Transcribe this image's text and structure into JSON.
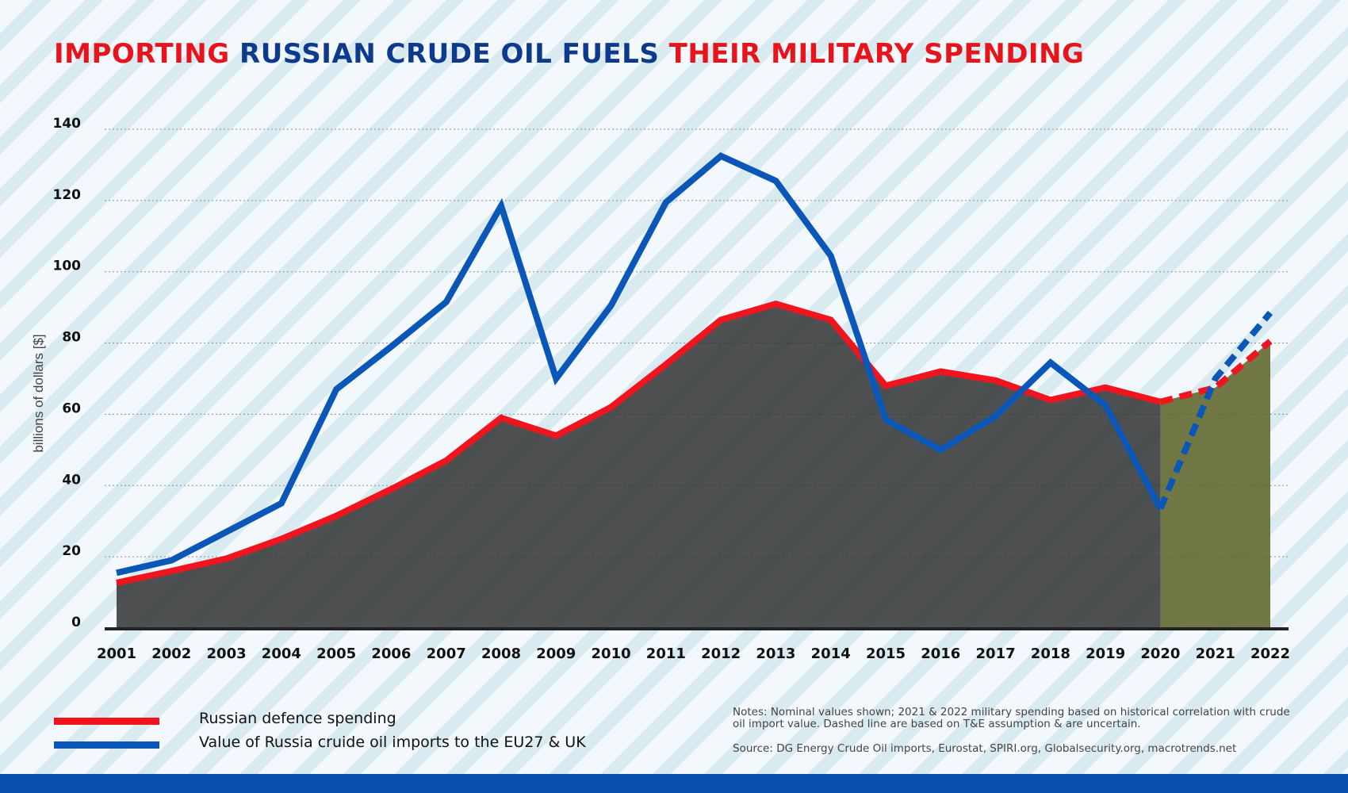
{
  "header": {
    "title_parts": [
      "IMPORTING ",
      "RUSSIAN CRUDE OIL FUELS ",
      "THEIR MILITARY SPENDING"
    ],
    "title_colors": [
      "#e8141c",
      "#0d3a8c",
      "#e8141c"
    ]
  },
  "colors": {
    "defence": "#f0141e",
    "oil": "#0b57b8",
    "footer": "#0b4fad",
    "photo_overlay": "#2b2b2b",
    "forecast_overlay": "#5a6224"
  },
  "chart_data": {
    "type": "line",
    "categories": [
      "2001",
      "2002",
      "2003",
      "2004",
      "2005",
      "2006",
      "2007",
      "2008",
      "2009",
      "2010",
      "2011",
      "2012",
      "2013",
      "2014",
      "2015",
      "2016",
      "2017",
      "2018",
      "2019",
      "2020",
      "2021",
      "2022"
    ],
    "ylabel": "billions of dollars [$]",
    "ylim": [
      0,
      140
    ],
    "yticks": [
      0,
      20,
      40,
      60,
      80,
      100,
      120,
      140
    ],
    "grid": true,
    "series": [
      {
        "name": "Russian defence spending",
        "color": "#f0141e",
        "values": [
          12.7,
          16,
          19.5,
          25,
          31.5,
          39,
          47,
          59,
          54,
          62,
          74,
          86.5,
          91,
          86.5,
          68,
          72,
          69.5,
          64,
          67.5,
          63.5,
          67.5,
          80.5
        ],
        "projected_from": "2020"
      },
      {
        "name": "Value of Russia cruide oil imports to the EU27 & UK",
        "color": "#0b57b8",
        "values": [
          15.5,
          19,
          27,
          35,
          67,
          79,
          91.5,
          118.5,
          70,
          90.5,
          119.5,
          132.5,
          125.5,
          104.5,
          58.5,
          50,
          59.5,
          74.5,
          62.5,
          33.5,
          70,
          88.5
        ],
        "projected_from": "2020"
      }
    ]
  },
  "legend": {
    "items": [
      {
        "label": "Russian defence spending",
        "color": "#f0141e"
      },
      {
        "label": "Value of Russia cruide oil imports to the EU27 & UK",
        "color": "#0b57b8"
      }
    ]
  },
  "notes": "Notes: Nominal values shown; 2021 & 2022 military spending based on historical correlation with crude oil import value. Dashed line are based on T&E assumption & are uncertain.",
  "source": "Source: DG Energy Crude Oil imports, Eurostat, SPIRI.org, Globalsecurity.org, macrotrends.net"
}
